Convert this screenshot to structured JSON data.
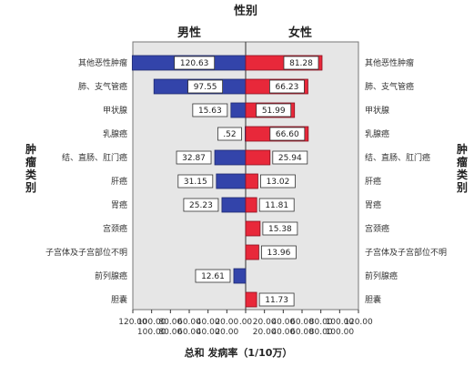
{
  "chart_data": {
    "type": "bar",
    "title": "性别",
    "panels": [
      "男性",
      "女性"
    ],
    "side_label": "肿瘤类别",
    "xlabel": "总和 发病率（1/10万）",
    "xlim": [
      0,
      120
    ],
    "left_ticks": [
      "120.00",
      "100.00",
      "80.00",
      "60.00",
      "40.00",
      "20.00",
      ".00"
    ],
    "right_ticks": [
      ".00",
      "20.00",
      "40.00",
      "60.00",
      "80.00",
      "100.00",
      "120.00"
    ],
    "bottom_left_ticks": [
      "100.00",
      "80.00",
      "60.00",
      "40.00",
      "20.00"
    ],
    "bottom_right_ticks": [
      "20.00",
      "40.00",
      "60.00",
      "80.00",
      "100.00"
    ],
    "categories": [
      "其他恶性肿瘤",
      "肺、支气管癌",
      "甲状腺",
      "乳腺癌",
      "结、直肠、肛门癌",
      "肝癌",
      "胃癌",
      "宫颈癌",
      "子宫体及子宫部位不明",
      "前列腺癌",
      "胆囊"
    ],
    "series": [
      {
        "name": "男性",
        "color": "#3344aa",
        "values": [
          120.63,
          97.55,
          15.63,
          0.52,
          32.87,
          31.15,
          25.23,
          null,
          null,
          12.61,
          null
        ],
        "labels": [
          "120.63",
          "97.55",
          "15.63",
          ".52",
          "32.87",
          "31.15",
          "25.23",
          "",
          "",
          "12.61",
          ""
        ]
      },
      {
        "name": "女性",
        "color": "#e8283a",
        "values": [
          81.28,
          66.23,
          51.99,
          66.6,
          25.94,
          13.02,
          11.81,
          15.38,
          13.96,
          null,
          11.73
        ],
        "labels": [
          "81.28",
          "66.23",
          "51.99",
          "66.60",
          "25.94",
          "13.02",
          "11.81",
          "15.38",
          "13.96",
          "",
          "11.73"
        ]
      }
    ],
    "grid": false,
    "background": "#e6e6e6"
  }
}
